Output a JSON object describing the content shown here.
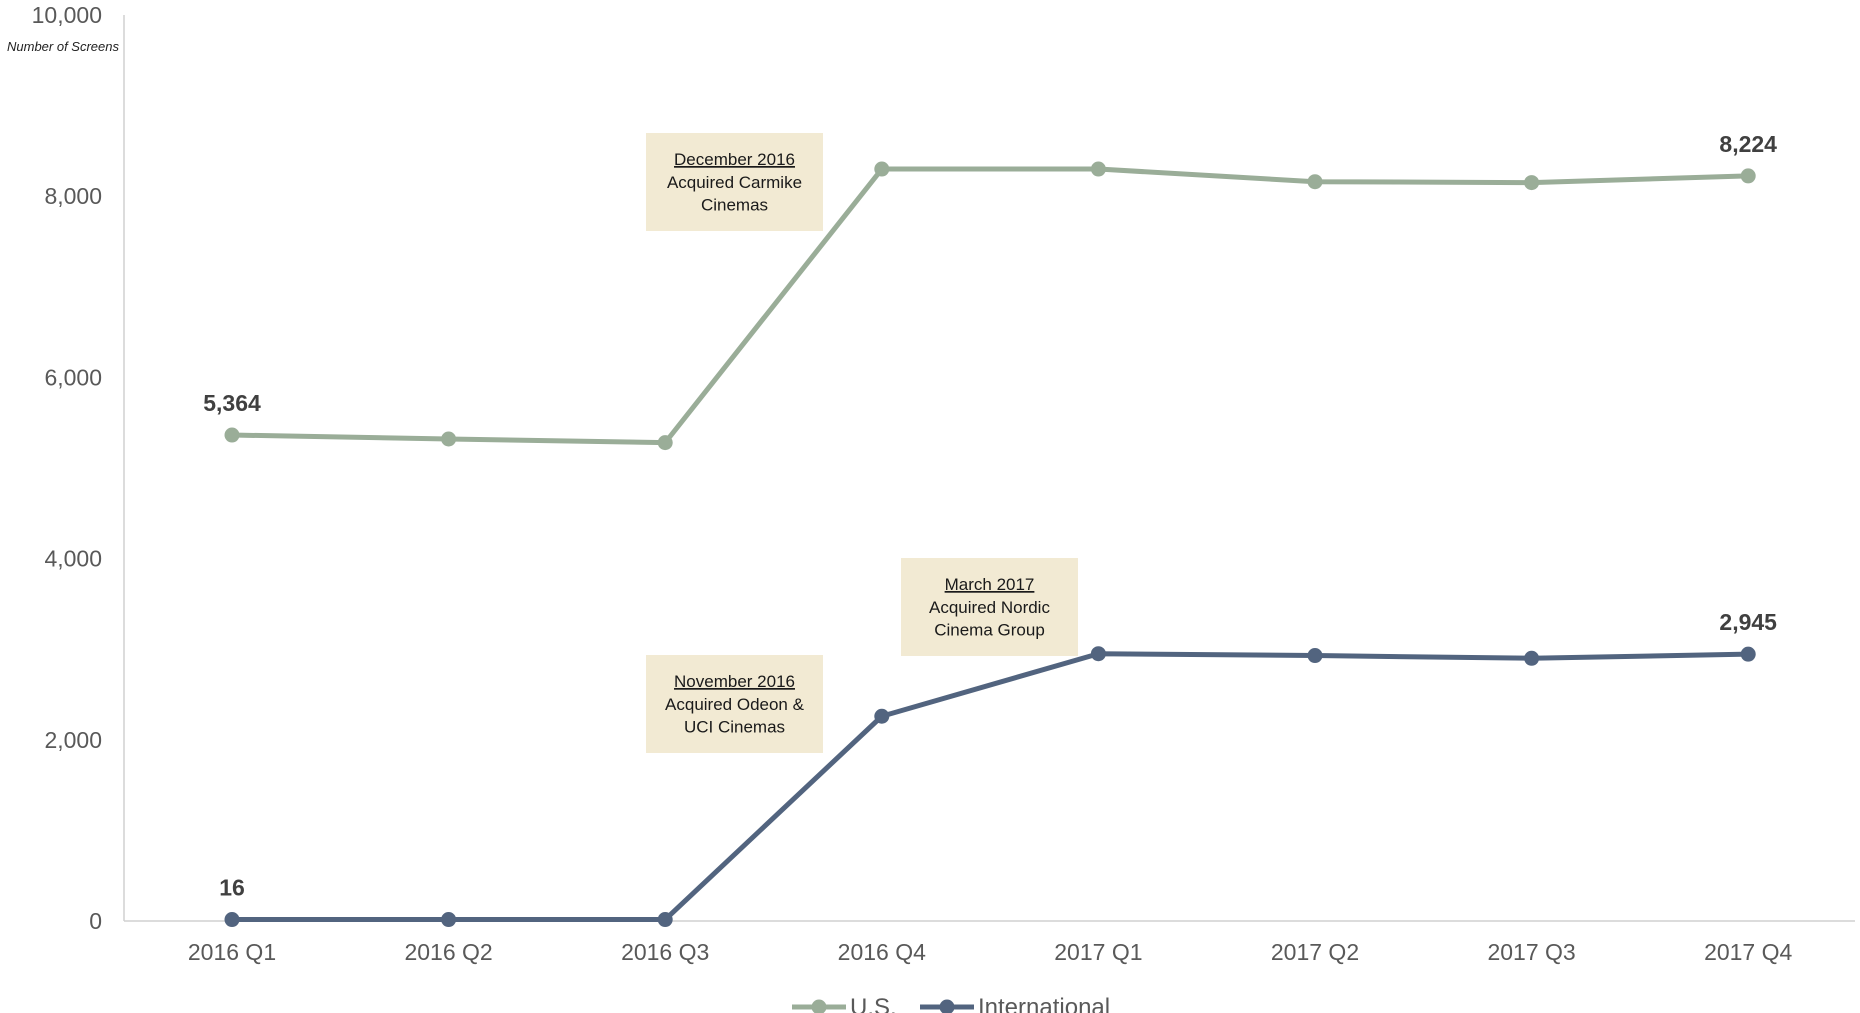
{
  "chart_data": {
    "type": "line",
    "title": "",
    "xlabel": "",
    "ylabel": "Number of Screens",
    "ylim": [
      0,
      10000
    ],
    "yticks": [
      0,
      2000,
      4000,
      6000,
      8000,
      10000
    ],
    "ytick_labels": [
      "0",
      "2,000",
      "4,000",
      "6,000",
      "8,000",
      "10,000"
    ],
    "grid": false,
    "legend_position": "bottom-center",
    "categories": [
      "2016 Q1",
      "2016 Q2",
      "2016 Q3",
      "2016 Q4",
      "2017 Q1",
      "2017 Q2",
      "2017 Q3",
      "2017 Q4"
    ],
    "series": [
      {
        "name": "U.S.",
        "color": "#9aad98",
        "values": [
          5364,
          5320,
          5280,
          8300,
          8300,
          8160,
          8150,
          8224
        ],
        "data_labels": [
          {
            "index": 0,
            "text": "5,364"
          },
          {
            "index": 7,
            "text": "8,224"
          }
        ]
      },
      {
        "name": "International",
        "color": "#52647f",
        "values": [
          16,
          16,
          16,
          2260,
          2950,
          2930,
          2900,
          2945
        ],
        "data_labels": [
          {
            "index": 0,
            "text": "16"
          },
          {
            "index": 7,
            "text": "2,945"
          }
        ]
      }
    ],
    "annotations": [
      {
        "title": "December 2016",
        "lines": [
          "Acquired Carmike",
          "Cinemas"
        ],
        "background": "#f2ead3"
      },
      {
        "title": "November 2016",
        "lines": [
          "Acquired Odeon &",
          "UCI Cinemas"
        ],
        "background": "#f2ead3"
      },
      {
        "title": "March 2017",
        "lines": [
          "Acquired Nordic",
          "Cinema Group"
        ],
        "background": "#f2ead3"
      }
    ]
  }
}
